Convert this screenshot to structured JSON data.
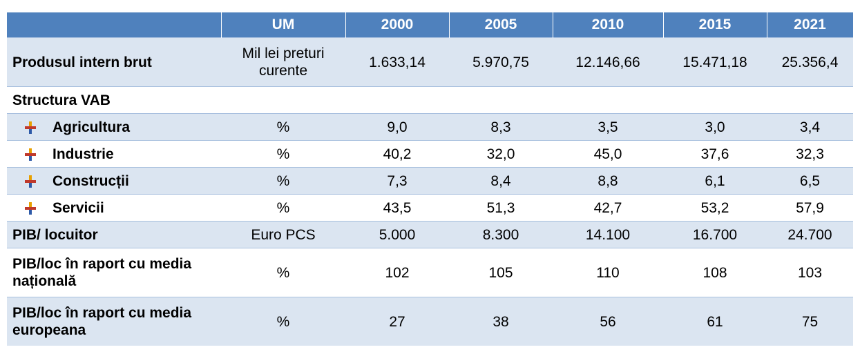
{
  "table": {
    "header": [
      "UM",
      "2000",
      "2005",
      "2010",
      "2015",
      "2021"
    ],
    "rows": [
      {
        "label": "Produsul intern brut",
        "um": "Mil lei preturi curente",
        "values": [
          "1.633,14",
          "5.970,75",
          "12.146,66",
          "15.471,18",
          "25.356,4"
        ]
      },
      {
        "label": "Structura VAB"
      },
      {
        "label": "Agricultura",
        "um": "%",
        "values": [
          "9,0",
          "8,3",
          "3,5",
          "3,0",
          "3,4"
        ],
        "sub": true
      },
      {
        "label": "Industrie",
        "um": "%",
        "values": [
          "40,2",
          "32,0",
          "45,0",
          "37,6",
          "32,3"
        ],
        "sub": true
      },
      {
        "label": "Construcții",
        "um": "%",
        "values": [
          "7,3",
          "8,4",
          "8,8",
          "6,1",
          "6,5"
        ],
        "sub": true
      },
      {
        "label": "Servicii",
        "um": "%",
        "values": [
          "43,5",
          "51,3",
          "42,7",
          "53,2",
          "57,9"
        ],
        "sub": true
      },
      {
        "label": "PIB/ locuitor",
        "um": "Euro PCS",
        "values": [
          "5.000",
          "8.300",
          "14.100",
          "16.700",
          "24.700"
        ]
      },
      {
        "label": "PIB/loc în raport cu media națională",
        "um": "%",
        "values": [
          "102",
          "105",
          "110",
          "108",
          "103"
        ]
      },
      {
        "label": "PIB/loc în raport cu media europeana",
        "um": "%",
        "values": [
          "27",
          "38",
          "56",
          "61",
          "75"
        ]
      }
    ]
  }
}
